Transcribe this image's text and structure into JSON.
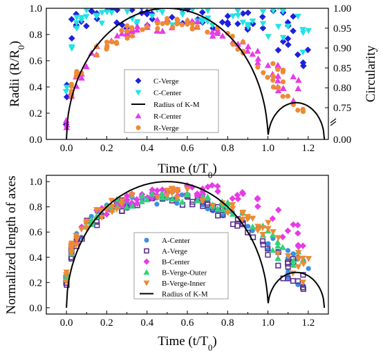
{
  "chart_data": [
    {
      "type": "scatter",
      "xlabel": "Time (t/T",
      "xlabel_sub": "0",
      "xlabel_tail": ")",
      "ylabel": "Radii (R/R",
      "ylabel_sub": "0",
      "ylabel_tail": ")",
      "y2label": "Circularity",
      "xlim": [
        -0.1,
        1.3
      ],
      "ylim": [
        0,
        1.0
      ],
      "xticks": [
        "0.0",
        "0.2",
        "0.4",
        "0.6",
        "0.8",
        "1.0",
        "1.2"
      ],
      "yticks": [
        "0.0",
        "0.2",
        "0.4",
        "0.6",
        "0.8",
        "1.0"
      ],
      "y2ticks": [
        "0.00",
        "0.75",
        "0.80",
        "0.85",
        "0.90",
        "0.95",
        "1.00"
      ],
      "y2_axis_break": true,
      "grid": false,
      "legend_position": "center",
      "series": [
        {
          "name": "C-Verge",
          "color": "#1f1fdf",
          "marker": "diamond",
          "axis": "right",
          "x": [
            0.0,
            0.01,
            0.02,
            0.03,
            0.05,
            0.08,
            0.1,
            0.15,
            0.2,
            0.25,
            0.3,
            0.35,
            0.4,
            0.45,
            0.5,
            0.55,
            0.6,
            0.65,
            0.7,
            0.75,
            0.8,
            0.85,
            0.9,
            0.95,
            1.0,
            1.05,
            1.1,
            1.12,
            1.15,
            1.18,
            1.2
          ],
          "y": [
            0.76,
            0.88,
            0.93,
            0.96,
            0.97,
            0.98,
            0.98,
            0.99,
            0.985,
            0.98,
            0.975,
            0.99,
            0.985,
            0.99,
            0.98,
            0.99,
            0.985,
            0.98,
            0.975,
            0.98,
            0.97,
            0.98,
            0.97,
            0.965,
            0.96,
            0.95,
            0.93,
            0.92,
            0.9,
            0.88,
            0.86
          ]
        },
        {
          "name": "C-Center",
          "color": "#22e3e3",
          "marker": "triangle-down",
          "axis": "right",
          "x": [
            0.0,
            0.01,
            0.02,
            0.03,
            0.05,
            0.08,
            0.1,
            0.15,
            0.2,
            0.25,
            0.3,
            0.35,
            0.4,
            0.45,
            0.5,
            0.55,
            0.6,
            0.65,
            0.7,
            0.75,
            0.8,
            0.85,
            0.9,
            0.95,
            1.0,
            1.05,
            1.1,
            1.15,
            1.2
          ],
          "y": [
            0.8,
            0.84,
            0.88,
            0.92,
            0.95,
            0.97,
            0.98,
            0.985,
            0.99,
            0.99,
            0.985,
            0.99,
            0.995,
            0.99,
            0.99,
            0.985,
            0.99,
            0.99,
            0.985,
            0.98,
            0.98,
            0.975,
            0.98,
            0.97,
            0.97,
            0.96,
            0.95,
            0.94,
            0.93
          ]
        },
        {
          "name": "Radius of K-M",
          "color": "#000000",
          "marker": "line",
          "axis": "left",
          "x": [
            0.0,
            1.0,
            1.28
          ],
          "y": [
            0.0,
            1.0,
            0.25
          ]
        },
        {
          "name": "R-Center",
          "color": "#e63ce6",
          "marker": "triangle-up",
          "axis": "left",
          "x": [
            0.0,
            0.02,
            0.05,
            0.1,
            0.15,
            0.2,
            0.25,
            0.3,
            0.4,
            0.5,
            0.6,
            0.7,
            0.8,
            0.9,
            1.0,
            1.05,
            1.1,
            1.15,
            1.2
          ],
          "y": [
            0.1,
            0.3,
            0.45,
            0.58,
            0.66,
            0.72,
            0.76,
            0.8,
            0.85,
            0.88,
            0.88,
            0.85,
            0.8,
            0.7,
            0.55,
            0.48,
            0.42,
            0.35,
            0.28
          ]
        },
        {
          "name": "R-Verge",
          "color": "#ee8a33",
          "marker": "circle",
          "axis": "left",
          "x": [
            0.0,
            0.02,
            0.05,
            0.1,
            0.15,
            0.2,
            0.25,
            0.3,
            0.4,
            0.5,
            0.6,
            0.7,
            0.8,
            0.9,
            1.0,
            1.05,
            1.1,
            1.15,
            1.2
          ],
          "y": [
            0.15,
            0.35,
            0.48,
            0.6,
            0.68,
            0.73,
            0.78,
            0.82,
            0.86,
            0.88,
            0.86,
            0.83,
            0.78,
            0.68,
            0.5,
            0.45,
            0.4,
            0.33,
            0.28
          ]
        }
      ]
    },
    {
      "type": "scatter",
      "xlabel": "Time (t/T",
      "xlabel_sub": "0",
      "xlabel_tail": ")",
      "ylabel": "Normalized length of axes",
      "xlim": [
        -0.1,
        1.3
      ],
      "ylim": [
        -0.05,
        1.05
      ],
      "xticks": [
        "0.0",
        "0.2",
        "0.4",
        "0.6",
        "0.8",
        "1.0",
        "1.2"
      ],
      "yticks": [
        "0.0",
        "0.2",
        "0.4",
        "0.6",
        "0.8",
        "1.0"
      ],
      "grid": false,
      "legend_position": "center",
      "series": [
        {
          "name": "A-Center",
          "color": "#3b8fe0",
          "marker": "circle",
          "x": [
            0.0,
            0.02,
            0.05,
            0.1,
            0.15,
            0.2,
            0.3,
            0.4,
            0.5,
            0.6,
            0.7,
            0.8,
            0.9,
            1.0,
            1.05,
            1.1,
            1.15,
            1.2
          ],
          "y": [
            0.25,
            0.45,
            0.55,
            0.65,
            0.72,
            0.78,
            0.83,
            0.86,
            0.88,
            0.86,
            0.83,
            0.76,
            0.68,
            0.5,
            0.42,
            0.35,
            0.3,
            0.25
          ]
        },
        {
          "name": "A-Verge",
          "color": "#5a2e8c",
          "marker": "square-open",
          "x": [
            0.0,
            0.02,
            0.05,
            0.1,
            0.15,
            0.2,
            0.3,
            0.4,
            0.5,
            0.6,
            0.7,
            0.8,
            0.9,
            1.0,
            1.05,
            1.1,
            1.15,
            1.2
          ],
          "y": [
            0.2,
            0.42,
            0.53,
            0.64,
            0.7,
            0.76,
            0.82,
            0.86,
            0.88,
            0.85,
            0.8,
            0.72,
            0.62,
            0.45,
            0.38,
            0.32,
            0.28,
            0.24
          ]
        },
        {
          "name": "B-Center",
          "color": "#e63ce6",
          "marker": "diamond",
          "x": [
            0.0,
            0.02,
            0.05,
            0.1,
            0.15,
            0.2,
            0.3,
            0.4,
            0.5,
            0.6,
            0.7,
            0.8,
            0.9,
            1.0,
            1.05,
            1.1,
            1.15,
            1.2
          ],
          "y": [
            0.22,
            0.44,
            0.55,
            0.66,
            0.73,
            0.78,
            0.85,
            0.89,
            0.92,
            0.94,
            0.93,
            0.92,
            0.88,
            0.8,
            0.72,
            0.62,
            0.55,
            0.48
          ]
        },
        {
          "name": "B-Verge-Outer",
          "color": "#33d17a",
          "marker": "triangle-up",
          "x": [
            0.0,
            0.02,
            0.05,
            0.1,
            0.15,
            0.2,
            0.3,
            0.4,
            0.5,
            0.6,
            0.7,
            0.8,
            0.9,
            1.0,
            1.05,
            1.1,
            1.15,
            1.2
          ],
          "y": [
            0.22,
            0.43,
            0.54,
            0.65,
            0.72,
            0.78,
            0.84,
            0.88,
            0.9,
            0.88,
            0.85,
            0.8,
            0.72,
            0.58,
            0.48,
            0.4,
            0.34,
            0.3
          ]
        },
        {
          "name": "B-Verge-Inner",
          "color": "#ee8a33",
          "marker": "triangle-down",
          "x": [
            0.0,
            0.02,
            0.05,
            0.1,
            0.15,
            0.2,
            0.3,
            0.4,
            0.5,
            0.6,
            0.7,
            0.8,
            0.9,
            1.0,
            1.05,
            1.1,
            1.15,
            1.2
          ],
          "y": [
            0.23,
            0.44,
            0.55,
            0.66,
            0.73,
            0.79,
            0.85,
            0.89,
            0.91,
            0.89,
            0.86,
            0.8,
            0.72,
            0.56,
            0.47,
            0.4,
            0.34,
            0.29
          ]
        },
        {
          "name": "Radius of K-M",
          "color": "#000000",
          "marker": "line",
          "x": [
            0.0,
            1.0,
            1.28
          ],
          "y": [
            0.0,
            1.0,
            0.25
          ]
        }
      ]
    }
  ]
}
